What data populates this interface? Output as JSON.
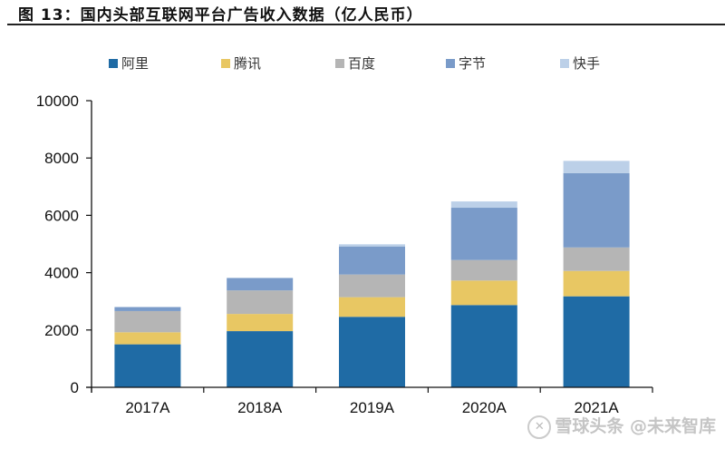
{
  "figure": {
    "title": "图 13：国内头部互联网平台广告收入数据（亿人民币）"
  },
  "watermark": {
    "logo_glyph": "✕",
    "text": "雪球头条 @未来智库"
  },
  "chart_data": {
    "type": "bar",
    "stacked": true,
    "title": "国内头部互联网平台广告收入数据（亿人民币）",
    "xlabel": "",
    "ylabel": "",
    "categories": [
      "2017A",
      "2018A",
      "2019A",
      "2020A",
      "2021A"
    ],
    "ylim": [
      0,
      10000
    ],
    "yticks": [
      0,
      2000,
      4000,
      6000,
      8000,
      10000
    ],
    "grid": false,
    "legend_position": "top",
    "series": [
      {
        "name": "阿里",
        "color": "#1F6BA5",
        "values": [
          1500,
          1960,
          2460,
          2870,
          3175
        ]
      },
      {
        "name": "腾讯",
        "color": "#E8C763",
        "values": [
          420,
          600,
          685,
          855,
          885
        ]
      },
      {
        "name": "百度",
        "color": "#B5B5B5",
        "values": [
          740,
          820,
          790,
          715,
          820
        ]
      },
      {
        "name": "字节",
        "color": "#7A9BC9",
        "values": [
          140,
          435,
          980,
          1825,
          2595
        ]
      },
      {
        "name": "快手",
        "color": "#BCD0E8",
        "values": [
          0,
          0,
          75,
          220,
          425
        ]
      }
    ]
  }
}
